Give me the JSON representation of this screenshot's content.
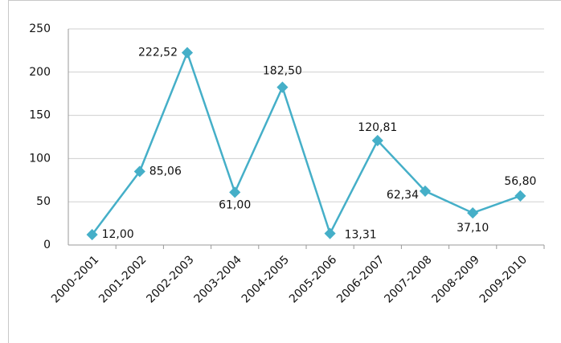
{
  "chart_data": {
    "type": "line",
    "categories": [
      "2000-2001",
      "2001-2002",
      "2002-2003",
      "2003-2004",
      "2004-2005",
      "2005-2006",
      "2006-2007",
      "2007-2008",
      "2008-2009",
      "2009-2010"
    ],
    "series": [
      {
        "color": "#45afc8",
        "values": [
          12.0,
          85.06,
          222.52,
          61.0,
          182.5,
          13.31,
          120.81,
          62.34,
          37.1,
          56.8
        ],
        "value_labels": [
          "12,00",
          "85,06",
          "222,52",
          "61,00",
          "182,50",
          "13,31",
          "120,81",
          "62,34",
          "37,10",
          "56,80"
        ]
      }
    ],
    "ylim": [
      0,
      250
    ],
    "yticks": [
      0,
      50,
      100,
      150,
      200,
      250
    ],
    "grid": true
  }
}
